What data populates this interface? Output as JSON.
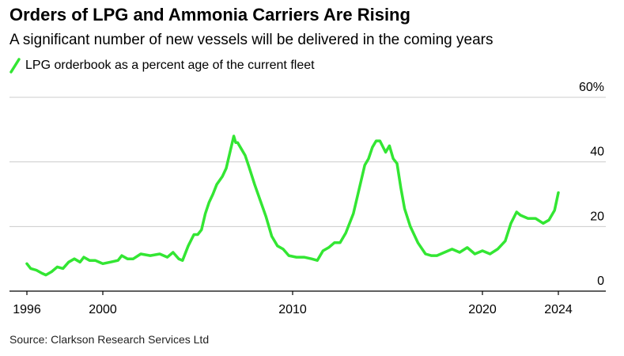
{
  "header": {
    "title": "Orders of LPG and Ammonia Carriers Are Rising",
    "subtitle": "A significant number of new vessels will be delivered in the coming years"
  },
  "footer": {
    "source": "Source: Clarkson Research Services Ltd"
  },
  "colors": {
    "series": "#33e633",
    "grid": "#cccccc",
    "axis": "#000000",
    "text": "#000000"
  },
  "chart_data": {
    "type": "line",
    "title": "Orders of LPG and Ammonia Carriers Are Rising",
    "subtitle": "A significant number of new vessels will be delivered in the coming years",
    "xlabel": "",
    "ylabel": "",
    "xlim": [
      1995.5,
      2026.0
    ],
    "ylim": [
      0,
      60
    ],
    "y_unit_suffix": "%",
    "x_ticks": [
      1996,
      2000,
      2010,
      2020,
      2024
    ],
    "y_ticks": [
      0,
      20,
      40,
      60
    ],
    "y_tick_labels": [
      "0",
      "20",
      "40",
      "60%"
    ],
    "grid": "horizontal",
    "legend": "top-left",
    "series": [
      {
        "name": "LPG orderbook as a percent age of the current fleet",
        "color": "#33e633",
        "x": [
          1996.0,
          1996.2,
          1996.5,
          1996.8,
          1997.0,
          1997.3,
          1997.6,
          1997.9,
          1998.2,
          1998.5,
          1998.8,
          1999.0,
          1999.3,
          1999.6,
          2000.0,
          2000.4,
          2000.8,
          2001.0,
          2001.3,
          2001.6,
          2002.0,
          2002.5,
          2003.0,
          2003.4,
          2003.7,
          2004.0,
          2004.2,
          2004.5,
          2004.8,
          2005.0,
          2005.2,
          2005.4,
          2005.6,
          2005.8,
          2006.0,
          2006.3,
          2006.5,
          2006.7,
          2006.9,
          2007.0,
          2007.1,
          2007.3,
          2007.5,
          2007.7,
          2008.0,
          2008.3,
          2008.6,
          2008.9,
          2009.2,
          2009.5,
          2009.8,
          2010.2,
          2010.6,
          2011.0,
          2011.3,
          2011.6,
          2011.9,
          2012.2,
          2012.5,
          2012.8,
          2013.2,
          2013.5,
          2013.8,
          2014.0,
          2014.2,
          2014.4,
          2014.6,
          2014.9,
          2015.1,
          2015.3,
          2015.5,
          2015.7,
          2015.9,
          2016.2,
          2016.6,
          2017.0,
          2017.3,
          2017.6,
          2018.0,
          2018.4,
          2018.8,
          2019.2,
          2019.6,
          2020.0,
          2020.4,
          2020.8,
          2021.2,
          2021.5,
          2021.8,
          2022.0,
          2022.4,
          2022.8,
          2023.2,
          2023.5,
          2023.8,
          2024.0
        ],
        "values": [
          8.5,
          7.0,
          6.5,
          5.5,
          5.0,
          6.0,
          7.5,
          7.0,
          9.0,
          10.0,
          9.0,
          10.5,
          9.5,
          9.5,
          8.5,
          9.0,
          9.5,
          11.0,
          10.0,
          10.0,
          11.5,
          11.0,
          11.5,
          10.5,
          12.0,
          10.0,
          9.5,
          14.0,
          17.5,
          17.5,
          19.0,
          24.0,
          27.5,
          30.0,
          33.0,
          35.5,
          38.0,
          43.0,
          48.0,
          46.0,
          46.0,
          44.0,
          42.0,
          38.5,
          33.0,
          28.0,
          23.0,
          17.0,
          14.0,
          13.0,
          11.0,
          10.5,
          10.5,
          10.0,
          9.5,
          12.5,
          13.5,
          15.0,
          15.0,
          18.0,
          24.0,
          31.5,
          39.0,
          41.0,
          44.5,
          46.5,
          46.5,
          43.0,
          45.0,
          41.0,
          39.5,
          32.0,
          25.5,
          20.0,
          15.0,
          11.5,
          11.0,
          11.0,
          12.0,
          13.0,
          12.0,
          13.5,
          11.5,
          12.5,
          11.5,
          13.0,
          15.5,
          21.0,
          24.5,
          23.5,
          22.5,
          22.5,
          21.0,
          22.0,
          25.0,
          30.5
        ]
      }
    ]
  }
}
